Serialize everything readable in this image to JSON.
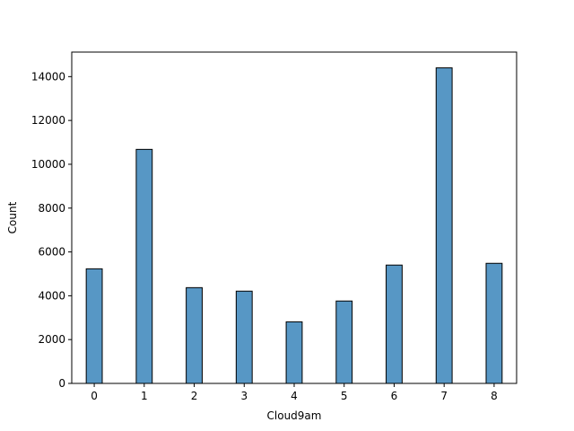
{
  "chart_data": {
    "type": "bar",
    "x": [
      0,
      1,
      2,
      3,
      4,
      5,
      6,
      7,
      8
    ],
    "values": [
      5230,
      10680,
      4370,
      4210,
      2810,
      3760,
      5400,
      14400,
      5480
    ],
    "xlabel": "Cloud9am",
    "ylabel": "Count",
    "xlim": [
      -0.45,
      8.45
    ],
    "ylim": [
      0,
      15120
    ],
    "xticks": [
      0,
      1,
      2,
      3,
      4,
      5,
      6,
      7,
      8
    ],
    "yticks": [
      0,
      2000,
      4000,
      6000,
      8000,
      10000,
      12000,
      14000
    ],
    "bar_width": 0.32,
    "bar_color": "#5797c5",
    "edge_color": "#000000",
    "grid": false,
    "legend": "none"
  }
}
